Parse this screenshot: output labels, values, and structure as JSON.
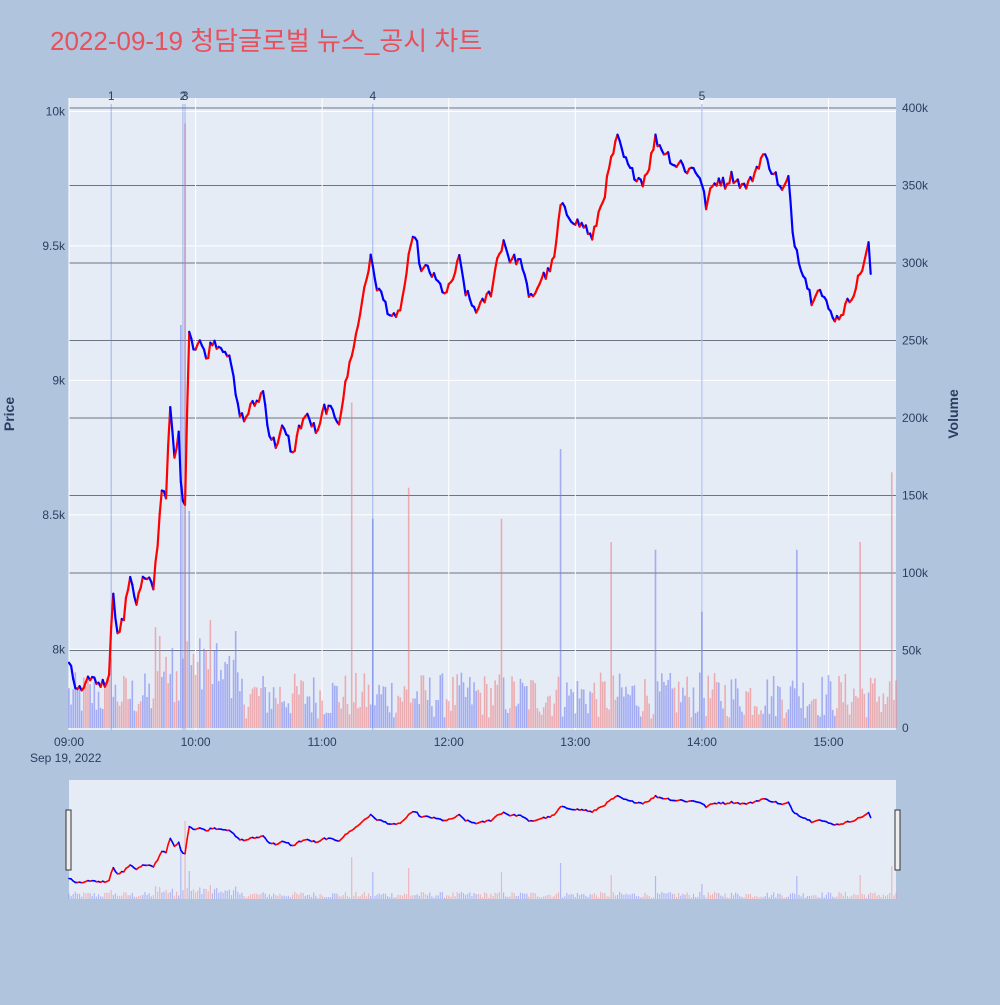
{
  "chart_data": {
    "type": "candlestick",
    "title": "2022-09-19 청담글로벌 뉴스_공시 차트",
    "ylabel_left": "Price",
    "ylabel_right": "Volume",
    "x_range": [
      "09:00",
      "15:32"
    ],
    "x_ticks": [
      "09:00",
      "10:00",
      "11:00",
      "12:00",
      "13:00",
      "14:00",
      "15:00"
    ],
    "x_date_label": "Sep 19, 2022",
    "price_range": [
      7700,
      10050
    ],
    "price_ticks": [
      {
        "v": 8000,
        "label": "8k"
      },
      {
        "v": 8500,
        "label": "8.5k"
      },
      {
        "v": 9000,
        "label": "9k"
      },
      {
        "v": 9500,
        "label": "9.5k"
      },
      {
        "v": 10000,
        "label": "10k"
      }
    ],
    "volume_range": [
      0,
      400000
    ],
    "volume_ticks": [
      {
        "v": 0,
        "label": "0"
      },
      {
        "v": 50000,
        "label": "50k"
      },
      {
        "v": 100000,
        "label": "100k"
      },
      {
        "v": 150000,
        "label": "150k"
      },
      {
        "v": 200000,
        "label": "200k"
      },
      {
        "v": 250000,
        "label": "250k"
      },
      {
        "v": 300000,
        "label": "300k"
      },
      {
        "v": 350000,
        "label": "350k"
      },
      {
        "v": 400000,
        "label": "400k"
      }
    ],
    "events": [
      {
        "label": "1",
        "time": "09:20"
      },
      {
        "label": "2",
        "time": "09:54"
      },
      {
        "label": "3",
        "time": "09:55"
      },
      {
        "label": "4",
        "time": "11:24"
      },
      {
        "label": "5",
        "time": "14:00"
      }
    ],
    "price_path": [
      [
        "09:00",
        7950
      ],
      [
        "09:03",
        7860
      ],
      [
        "09:07",
        7840
      ],
      [
        "09:10",
        7900
      ],
      [
        "09:13",
        7880
      ],
      [
        "09:17",
        7870
      ],
      [
        "09:19",
        7920
      ],
      [
        "09:21",
        8220
      ],
      [
        "09:23",
        8050
      ],
      [
        "09:26",
        8120
      ],
      [
        "09:29",
        8280
      ],
      [
        "09:32",
        8170
      ],
      [
        "09:35",
        8260
      ],
      [
        "09:38",
        8250
      ],
      [
        "09:40",
        8230
      ],
      [
        "09:42",
        8400
      ],
      [
        "09:44",
        8600
      ],
      [
        "09:46",
        8580
      ],
      [
        "09:48",
        8900
      ],
      [
        "09:50",
        8700
      ],
      [
        "09:52",
        8800
      ],
      [
        "09:53",
        8620
      ],
      [
        "09:55",
        8520
      ],
      [
        "09:56",
        8900
      ],
      [
        "09:57",
        9200
      ],
      [
        "09:59",
        9120
      ],
      [
        "10:02",
        9150
      ],
      [
        "10:05",
        9080
      ],
      [
        "10:08",
        9150
      ],
      [
        "10:11",
        9130
      ],
      [
        "10:14",
        9120
      ],
      [
        "10:17",
        9050
      ],
      [
        "10:20",
        8900
      ],
      [
        "10:23",
        8850
      ],
      [
        "10:26",
        8900
      ],
      [
        "10:29",
        8920
      ],
      [
        "10:32",
        8960
      ],
      [
        "10:35",
        8800
      ],
      [
        "10:38",
        8760
      ],
      [
        "10:41",
        8820
      ],
      [
        "10:44",
        8780
      ],
      [
        "10:46",
        8720
      ],
      [
        "10:49",
        8820
      ],
      [
        "10:52",
        8870
      ],
      [
        "10:55",
        8840
      ],
      [
        "10:58",
        8800
      ],
      [
        "11:01",
        8900
      ],
      [
        "11:05",
        8880
      ],
      [
        "11:08",
        8850
      ],
      [
        "11:11",
        8980
      ],
      [
        "11:14",
        9100
      ],
      [
        "11:17",
        9200
      ],
      [
        "11:20",
        9350
      ],
      [
        "11:23",
        9450
      ],
      [
        "11:26",
        9350
      ],
      [
        "11:29",
        9300
      ],
      [
        "11:32",
        9250
      ],
      [
        "11:35",
        9220
      ],
      [
        "11:38",
        9300
      ],
      [
        "11:41",
        9450
      ],
      [
        "11:44",
        9550
      ],
      [
        "11:47",
        9400
      ],
      [
        "11:50",
        9420
      ],
      [
        "11:53",
        9380
      ],
      [
        "11:56",
        9350
      ],
      [
        "11:59",
        9320
      ],
      [
        "12:02",
        9380
      ],
      [
        "12:05",
        9450
      ],
      [
        "12:08",
        9330
      ],
      [
        "12:11",
        9280
      ],
      [
        "12:14",
        9260
      ],
      [
        "12:17",
        9300
      ],
      [
        "12:20",
        9330
      ],
      [
        "12:23",
        9450
      ],
      [
        "12:26",
        9520
      ],
      [
        "12:29",
        9450
      ],
      [
        "12:32",
        9450
      ],
      [
        "12:35",
        9430
      ],
      [
        "12:38",
        9300
      ],
      [
        "12:41",
        9330
      ],
      [
        "12:44",
        9380
      ],
      [
        "12:47",
        9400
      ],
      [
        "12:50",
        9450
      ],
      [
        "12:53",
        9650
      ],
      [
        "12:56",
        9620
      ],
      [
        "12:59",
        9600
      ],
      [
        "13:02",
        9580
      ],
      [
        "13:05",
        9570
      ],
      [
        "13:08",
        9520
      ],
      [
        "13:11",
        9620
      ],
      [
        "13:14",
        9700
      ],
      [
        "13:17",
        9820
      ],
      [
        "13:20",
        9900
      ],
      [
        "13:23",
        9830
      ],
      [
        "13:26",
        9780
      ],
      [
        "13:29",
        9760
      ],
      [
        "13:32",
        9740
      ],
      [
        "13:35",
        9800
      ],
      [
        "13:38",
        9900
      ],
      [
        "13:41",
        9860
      ],
      [
        "13:44",
        9840
      ],
      [
        "13:47",
        9800
      ],
      [
        "13:50",
        9810
      ],
      [
        "13:53",
        9780
      ],
      [
        "13:56",
        9790
      ],
      [
        "13:59",
        9760
      ],
      [
        "14:02",
        9650
      ],
      [
        "14:05",
        9720
      ],
      [
        "14:08",
        9750
      ],
      [
        "14:11",
        9730
      ],
      [
        "14:14",
        9760
      ],
      [
        "14:17",
        9740
      ],
      [
        "14:20",
        9720
      ],
      [
        "14:23",
        9740
      ],
      [
        "14:26",
        9790
      ],
      [
        "14:29",
        9840
      ],
      [
        "14:32",
        9800
      ],
      [
        "14:35",
        9760
      ],
      [
        "14:38",
        9700
      ],
      [
        "14:41",
        9750
      ],
      [
        "14:43",
        9550
      ],
      [
        "14:46",
        9450
      ],
      [
        "14:49",
        9380
      ],
      [
        "14:52",
        9300
      ],
      [
        "14:55",
        9350
      ],
      [
        "14:58",
        9300
      ],
      [
        "15:01",
        9250
      ],
      [
        "15:04",
        9230
      ],
      [
        "15:07",
        9260
      ],
      [
        "15:10",
        9300
      ],
      [
        "15:13",
        9350
      ],
      [
        "15:16",
        9420
      ],
      [
        "15:19",
        9500
      ],
      [
        "15:20",
        9400
      ]
    ],
    "volume_spikes": [
      [
        "09:20",
        45000
      ],
      [
        "09:53",
        260000
      ],
      [
        "09:55",
        390000
      ],
      [
        "09:57",
        140000
      ],
      [
        "11:14",
        210000
      ],
      [
        "11:24",
        135000
      ],
      [
        "11:41",
        155000
      ],
      [
        "12:25",
        135000
      ],
      [
        "12:53",
        180000
      ],
      [
        "13:17",
        120000
      ],
      [
        "13:38",
        115000
      ],
      [
        "14:00",
        75000
      ],
      [
        "14:45",
        115000
      ],
      [
        "15:15",
        120000
      ],
      [
        "15:30",
        165000
      ]
    ]
  }
}
